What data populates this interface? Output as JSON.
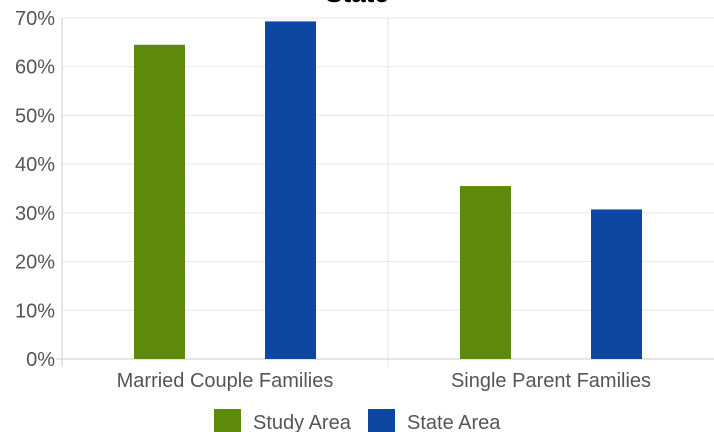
{
  "chart_data": {
    "type": "bar",
    "title": "State",
    "categories": [
      "Married Couple Families",
      "Single Parent Families"
    ],
    "series": [
      {
        "name": "Study Area",
        "values": [
          64.5,
          35.5
        ],
        "color": "#5d8a0a"
      },
      {
        "name": "State Area",
        "values": [
          69.3,
          30.7
        ],
        "color": "#0d47a1"
      }
    ],
    "ylim": [
      0,
      70
    ],
    "yticks": [
      0,
      10,
      20,
      30,
      40,
      50,
      60,
      70
    ],
    "ytick_labels": [
      "0%",
      "10%",
      "20%",
      "30%",
      "40%",
      "50%",
      "60%",
      "70%"
    ],
    "xlabel": "",
    "ylabel": "",
    "grid": true,
    "legend_position": "bottom"
  }
}
